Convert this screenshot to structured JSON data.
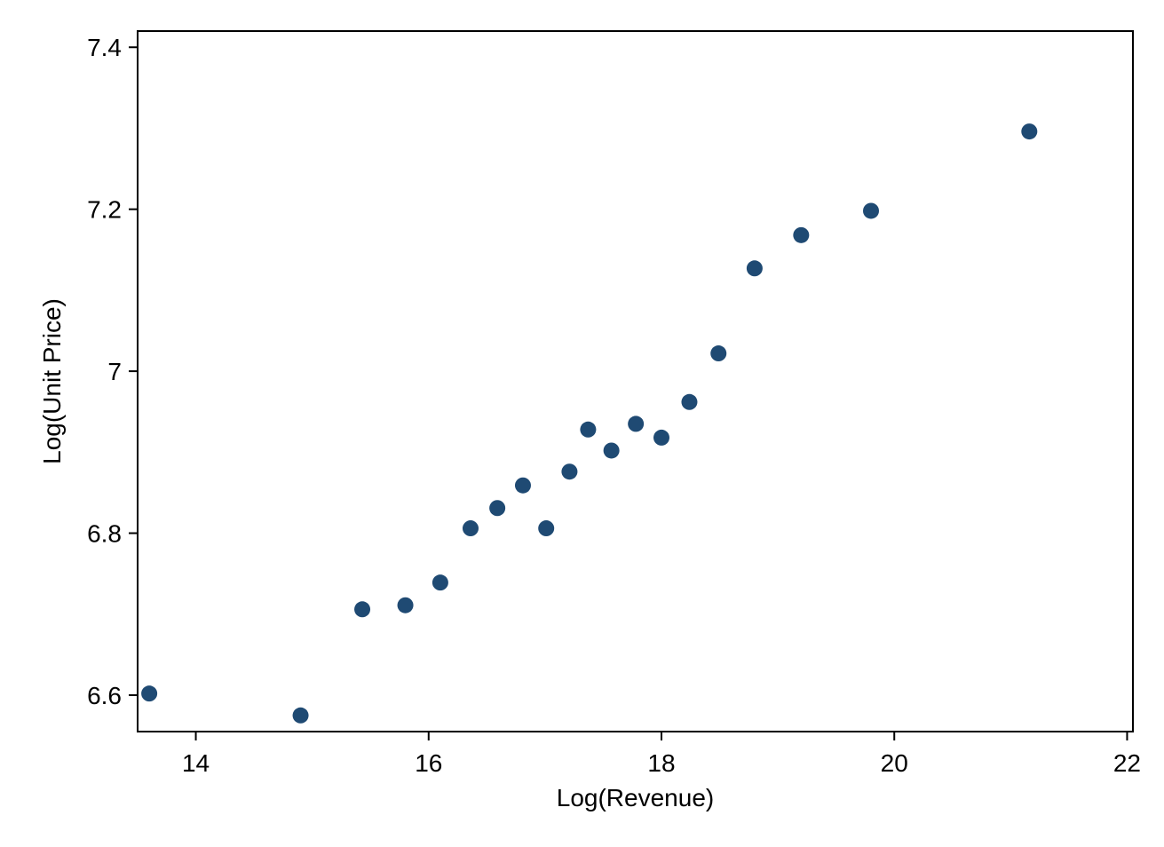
{
  "chart_data": {
    "type": "scatter",
    "xlabel": "Log(Revenue)",
    "ylabel": "Log(Unit Price)",
    "xlim": [
      13.5,
      22.05
    ],
    "ylim": [
      6.555,
      7.42
    ],
    "x_ticks": [
      14,
      16,
      18,
      20,
      22
    ],
    "y_ticks": [
      6.6,
      6.8,
      7.0,
      7.2,
      7.4
    ],
    "x_tick_labels": [
      "14",
      "16",
      "18",
      "20",
      "22"
    ],
    "y_tick_labels": [
      "6.6",
      "6.8",
      "7",
      "7.2",
      "7.4"
    ],
    "grid": false,
    "legend": "none",
    "marker_color": "#1f4a73",
    "points": [
      {
        "x": 13.6,
        "y": 6.602
      },
      {
        "x": 14.9,
        "y": 6.575
      },
      {
        "x": 15.43,
        "y": 6.706
      },
      {
        "x": 15.8,
        "y": 6.711
      },
      {
        "x": 16.1,
        "y": 6.739
      },
      {
        "x": 16.36,
        "y": 6.806
      },
      {
        "x": 16.59,
        "y": 6.831
      },
      {
        "x": 16.81,
        "y": 6.859
      },
      {
        "x": 17.01,
        "y": 6.806
      },
      {
        "x": 17.21,
        "y": 6.876
      },
      {
        "x": 17.37,
        "y": 6.928
      },
      {
        "x": 17.57,
        "y": 6.902
      },
      {
        "x": 17.78,
        "y": 6.935
      },
      {
        "x": 18.0,
        "y": 6.918
      },
      {
        "x": 18.24,
        "y": 6.962
      },
      {
        "x": 18.49,
        "y": 7.022
      },
      {
        "x": 18.8,
        "y": 7.127
      },
      {
        "x": 19.2,
        "y": 7.168
      },
      {
        "x": 19.8,
        "y": 7.198
      },
      {
        "x": 21.16,
        "y": 7.296
      }
    ]
  }
}
